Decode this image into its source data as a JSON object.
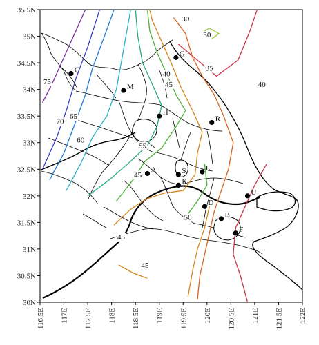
{
  "axes": {
    "lat_ticks": [
      "35.5N",
      "35N",
      "34.5N",
      "34N",
      "33.5N",
      "33N",
      "32.5N",
      "32N",
      "31.5N",
      "31N",
      "30.5N",
      "30N"
    ],
    "lon_ticks": [
      "116.5E",
      "117E",
      "117.5E",
      "118E",
      "118.5E",
      "119E",
      "119.5E",
      "120E",
      "120.5E",
      "121E",
      "121.5E",
      "122E"
    ],
    "lat_range": [
      30,
      35.5
    ],
    "lon_range": [
      116.5,
      122
    ]
  },
  "chart_data": {
    "type": "contour",
    "contours": [
      {
        "value": 75,
        "color": "#7b2fa0",
        "label": "75"
      },
      {
        "value": 70,
        "color": "#3b3cc7",
        "label": "70"
      },
      {
        "value": 65,
        "color": "#1f7ad6",
        "label": "65"
      },
      {
        "value": 60,
        "color": "#2db0c6",
        "label": "60"
      },
      {
        "value": 55,
        "color": "#28a88a",
        "label": "55"
      },
      {
        "value": 50,
        "color": "#4fae3c",
        "label": "50"
      },
      {
        "value": 45,
        "color": "#d4851c",
        "label": "45"
      },
      {
        "value": 40,
        "color": "#d8621c",
        "label": "40"
      },
      {
        "value": 35,
        "color": "#c8364a",
        "label": "35"
      },
      {
        "value": 30,
        "color": "#9bcc3a",
        "label": "30"
      }
    ],
    "contour_labels": [
      {
        "text": "75",
        "lon": 116.65,
        "lat": 34.1
      },
      {
        "text": "70",
        "lon": 116.92,
        "lat": 33.35
      },
      {
        "text": "65",
        "lon": 117.2,
        "lat": 33.45
      },
      {
        "text": "60",
        "lon": 117.35,
        "lat": 33.0
      },
      {
        "text": "55",
        "lon": 118.65,
        "lat": 32.9
      },
      {
        "text": "45",
        "lon": 118.55,
        "lat": 32.35
      },
      {
        "text": "50",
        "lon": 119.6,
        "lat": 31.55
      },
      {
        "text": "45",
        "lon": 118.2,
        "lat": 31.18
      },
      {
        "text": "45",
        "lon": 118.7,
        "lat": 30.65
      },
      {
        "text": "45",
        "lon": 119.2,
        "lat": 34.05
      },
      {
        "text": "40",
        "lon": 119.15,
        "lat": 34.25
      },
      {
        "text": "35",
        "lon": 120.05,
        "lat": 34.35
      },
      {
        "text": "30",
        "lon": 119.55,
        "lat": 35.28
      },
      {
        "text": "30",
        "lon": 120.0,
        "lat": 34.98
      },
      {
        "text": "40",
        "lon": 121.15,
        "lat": 34.05
      }
    ],
    "stations": [
      {
        "id": "C",
        "lon": 117.15,
        "lat": 34.3
      },
      {
        "id": "G",
        "lon": 119.35,
        "lat": 34.6
      },
      {
        "id": "M",
        "lon": 118.25,
        "lat": 33.98
      },
      {
        "id": "H",
        "lon": 119.0,
        "lat": 33.5
      },
      {
        "id": "R",
        "lon": 120.1,
        "lat": 33.38
      },
      {
        "id": "A",
        "lon": 118.75,
        "lat": 32.42
      },
      {
        "id": "S",
        "lon": 119.4,
        "lat": 32.4
      },
      {
        "id": "L",
        "lon": 119.9,
        "lat": 32.45
      },
      {
        "id": "K",
        "lon": 119.4,
        "lat": 32.2
      },
      {
        "id": "U",
        "lon": 120.85,
        "lat": 32.0
      },
      {
        "id": "D",
        "lon": 119.95,
        "lat": 31.8
      },
      {
        "id": "B",
        "lon": 120.3,
        "lat": 31.57
      },
      {
        "id": "F",
        "lon": 120.6,
        "lat": 31.3
      }
    ]
  }
}
